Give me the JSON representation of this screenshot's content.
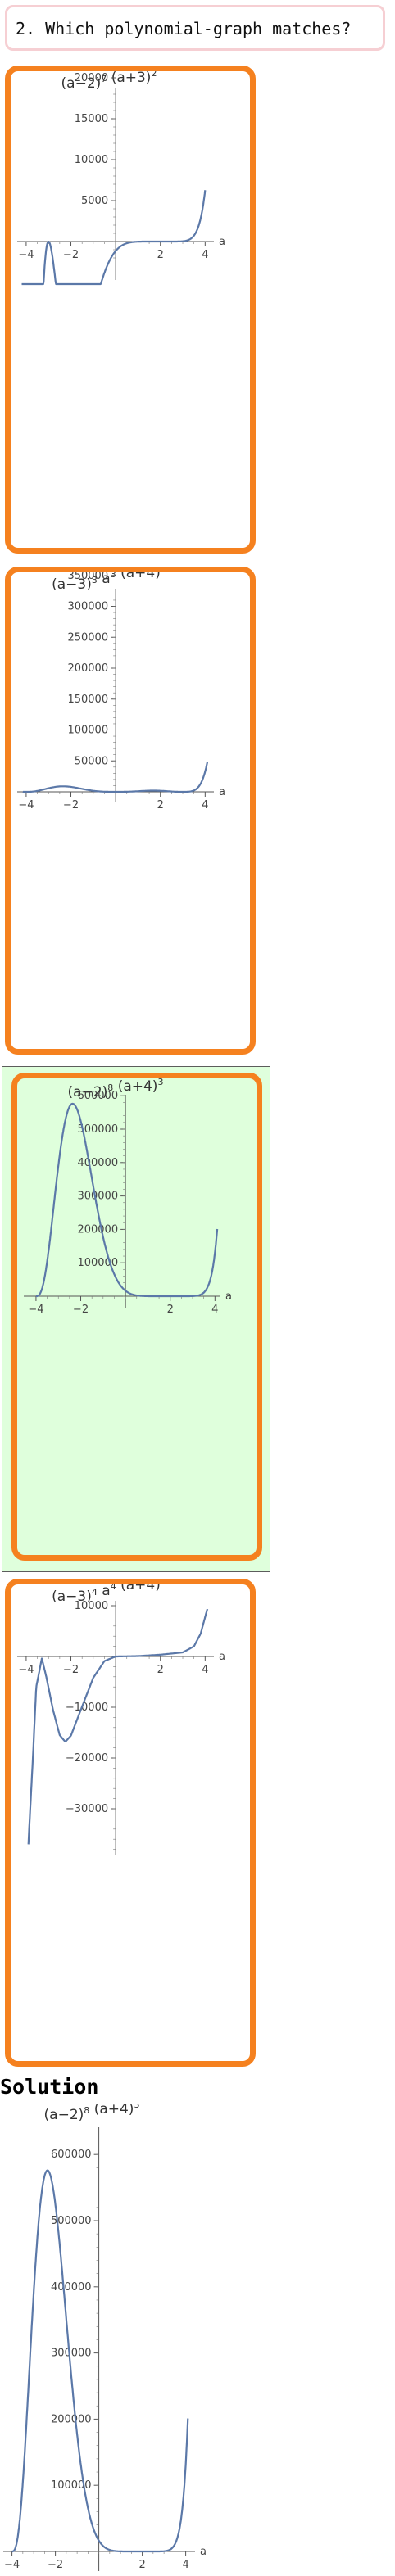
{
  "question": {
    "text": "2. Which polynomial-graph matches?"
  },
  "choices": [
    {
      "title": {
        "parts": [
          [
            "(a−2)",
            "7"
          ],
          [
            " (a+3)",
            "2"
          ]
        ]
      },
      "y_tick_labels": [
        "20000",
        "15000",
        "10000",
        "5000"
      ],
      "x_tick_labels": [
        "−4",
        "−2",
        "2",
        "4"
      ],
      "x_axis_label": "a",
      "chart_data": {
        "type": "line",
        "expression": "(a-2)^7 (a+3)^2",
        "x": [
          -4.2,
          4.2
        ],
        "ylim": [
          -1800,
          20000
        ]
      }
    },
    {
      "title": {
        "parts": [
          [
            "(a−3)",
            "3"
          ],
          [
            " a",
            "3"
          ],
          [
            " (a+4)",
            "3"
          ]
        ]
      },
      "y_tick_labels": [
        "350000",
        "300000",
        "250000",
        "200000",
        "150000",
        "100000",
        "50000"
      ],
      "x_tick_labels": [
        "−4",
        "−2",
        "2",
        "4"
      ],
      "x_axis_label": "a",
      "chart_data": {
        "type": "line",
        "expression": "|(a-3)^3 a^3 (a+4)^3|",
        "x": [
          -4.2,
          4.2
        ],
        "ylim": [
          0,
          350000
        ]
      }
    },
    {
      "title": {
        "parts": [
          [
            "(a−2)",
            "8"
          ],
          [
            " (a+4)",
            "3"
          ]
        ]
      },
      "y_tick_labels": [
        "600000",
        "500000",
        "400000",
        "300000",
        "200000",
        "100000"
      ],
      "x_tick_labels": [
        "−4",
        "−2",
        "2",
        "4"
      ],
      "x_axis_label": "a",
      "correct": true,
      "chart_data": {
        "type": "line",
        "expression": "(a-2)^8 (a+4)^3",
        "x": [
          -4.2,
          4.2
        ],
        "ylim": [
          0,
          600000
        ]
      }
    },
    {
      "title": {
        "parts": [
          [
            "(a−3)",
            "4"
          ],
          [
            " a",
            "4"
          ],
          [
            " (a+4)",
            "4"
          ]
        ]
      },
      "y_tick_labels": [
        "10000",
        "−10000",
        "−20000",
        "−30000"
      ],
      "x_tick_labels": [
        "−4",
        "−2",
        "2",
        "4"
      ],
      "x_axis_label": "a",
      "chart_data": {
        "type": "line",
        "expression": "shape",
        "x": [
          -4.2,
          4.2
        ],
        "ylim": [
          -40000,
          10000
        ]
      }
    }
  ],
  "solution": {
    "label": "Solution",
    "title": {
      "parts": [
        [
          "(a−2)",
          "8"
        ],
        [
          " (a+4)",
          "3"
        ]
      ]
    },
    "y_tick_labels": [
      "600000",
      "500000",
      "400000",
      "300000",
      "200000",
      "100000"
    ],
    "x_tick_labels": [
      "−4",
      "−2",
      "2",
      "4"
    ],
    "x_axis_label": "a",
    "chart_data": {
      "type": "line",
      "expression": "(a-2)^8 (a+4)^3",
      "x": [
        -4.2,
        4.2
      ],
      "ylim": [
        0,
        600000
      ]
    }
  }
}
